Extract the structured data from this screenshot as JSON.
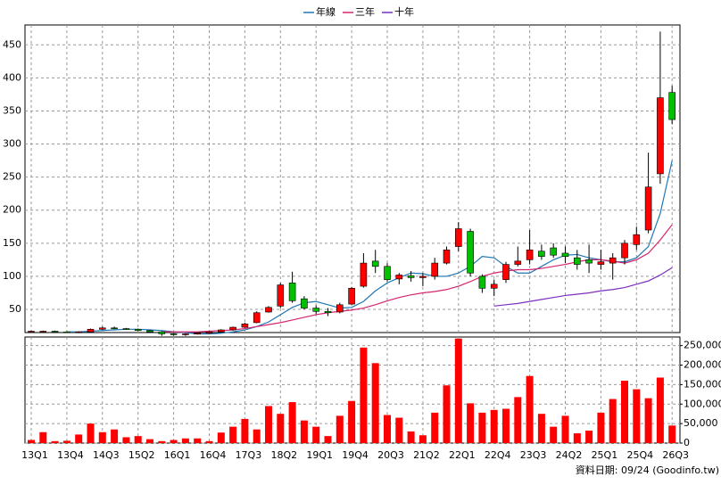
{
  "chart_data": [
    {
      "type": "candlestick",
      "categories": [
        "13Q1",
        null,
        null,
        "13Q4",
        null,
        null,
        "14Q3",
        null,
        null,
        "15Q2",
        null,
        null,
        "16Q1",
        null,
        null,
        "16Q4",
        null,
        null,
        "17Q3",
        null,
        null,
        "18Q2",
        null,
        null,
        "19Q1",
        null,
        null,
        "19Q4",
        null,
        null,
        "20Q3",
        null,
        null,
        "21Q2",
        null,
        null,
        "22Q1",
        null,
        null,
        "22Q4",
        null,
        null,
        "23Q3",
        null,
        null,
        "24Q2",
        null,
        null,
        "25Q1",
        null,
        null,
        "25Q4",
        null,
        null,
        "26Q3"
      ],
      "open": [
        17,
        17,
        17,
        16,
        15,
        16,
        20,
        22,
        21,
        20,
        18,
        16,
        13,
        12,
        13,
        14,
        16,
        19,
        23,
        30,
        46,
        55,
        90,
        66,
        52,
        47,
        46,
        58,
        85,
        123,
        115,
        96,
        101,
        98,
        100,
        120,
        145,
        168,
        100,
        82,
        95,
        118,
        125,
        138,
        143,
        135,
        128,
        125,
        118,
        120,
        128,
        148,
        170,
        255,
        378
      ],
      "high": [
        18,
        18,
        18,
        17,
        17,
        21,
        24,
        24,
        22,
        21,
        19,
        17,
        14,
        14,
        15,
        17,
        20,
        24,
        30,
        47,
        55,
        90,
        107,
        70,
        56,
        52,
        60,
        84,
        135,
        140,
        120,
        105,
        108,
        105,
        128,
        145,
        182,
        172,
        103,
        95,
        122,
        145,
        170,
        148,
        150,
        145,
        140,
        148,
        140,
        135,
        155,
        175,
        287,
        470,
        388
      ],
      "low": [
        16,
        16,
        16,
        15,
        14,
        15,
        19,
        20,
        19,
        17,
        15,
        10,
        10,
        10,
        12,
        13,
        15,
        18,
        22,
        29,
        45,
        52,
        60,
        50,
        43,
        40,
        44,
        57,
        83,
        105,
        92,
        88,
        92,
        85,
        95,
        118,
        138,
        100,
        75,
        70,
        90,
        115,
        118,
        125,
        128,
        120,
        110,
        105,
        110,
        95,
        118,
        140,
        165,
        240,
        330
      ],
      "close": [
        17,
        17,
        16,
        15,
        16,
        20,
        22,
        21,
        20,
        18,
        16,
        13,
        12,
        13,
        14,
        16,
        19,
        23,
        28,
        45,
        53,
        87,
        63,
        52,
        47,
        45,
        57,
        82,
        120,
        115,
        95,
        102,
        98,
        100,
        120,
        140,
        172,
        105,
        82,
        88,
        118,
        123,
        140,
        130,
        132,
        130,
        118,
        120,
        122,
        128,
        150,
        163,
        235,
        370,
        337
      ],
      "up_color": "#ff0000",
      "down_color": "#00c000",
      "series": [
        {
          "name": "年線",
          "color": "#1f77b4",
          "values": [
            null,
            null,
            null,
            16,
            16,
            17,
            18,
            19,
            20,
            20,
            19,
            18,
            16,
            15,
            13,
            13,
            14,
            16,
            19,
            24,
            31,
            42,
            53,
            60,
            62,
            57,
            52,
            53,
            62,
            78,
            90,
            98,
            105,
            104,
            100,
            100,
            105,
            115,
            130,
            128,
            115,
            105,
            105,
            115,
            125,
            132,
            133,
            128,
            125,
            122,
            122,
            128,
            145,
            195,
            275
          ]
        },
        {
          "name": "三年",
          "color": "#d6246e",
          "values": [
            null,
            null,
            null,
            null,
            null,
            null,
            null,
            null,
            null,
            null,
            null,
            16,
            16,
            16,
            16,
            17,
            18,
            19,
            21,
            24,
            27,
            30,
            34,
            38,
            42,
            45,
            47,
            49,
            52,
            57,
            63,
            68,
            72,
            75,
            77,
            80,
            85,
            92,
            100,
            105,
            108,
            110,
            110,
            112,
            115,
            118,
            122,
            125,
            125,
            123,
            120,
            125,
            135,
            155,
            178
          ]
        },
        {
          "name": "十年",
          "color": "#7b2fbf",
          "values": [
            null,
            null,
            null,
            null,
            null,
            null,
            null,
            null,
            null,
            null,
            null,
            null,
            null,
            null,
            null,
            null,
            null,
            null,
            null,
            null,
            null,
            null,
            null,
            null,
            null,
            null,
            null,
            null,
            null,
            null,
            null,
            null,
            null,
            null,
            null,
            null,
            null,
            null,
            null,
            55,
            57,
            59,
            62,
            65,
            68,
            71,
            73,
            75,
            78,
            80,
            83,
            88,
            93,
            102,
            113
          ]
        }
      ],
      "ylim": [
        15,
        480
      ],
      "yticks": [
        50,
        100,
        150,
        200,
        250,
        300,
        350,
        400,
        450
      ],
      "grid": true,
      "legend": "top"
    },
    {
      "type": "bar",
      "color": "#ff0000",
      "values": [
        8000,
        28000,
        5000,
        6000,
        22000,
        50000,
        28000,
        35000,
        15000,
        18000,
        10000,
        5000,
        8000,
        12000,
        12000,
        5000,
        27000,
        42000,
        62000,
        35000,
        95000,
        75000,
        105000,
        58000,
        42000,
        18000,
        70000,
        108000,
        245000,
        205000,
        72000,
        65000,
        30000,
        20000,
        78000,
        148000,
        268000,
        102000,
        78000,
        85000,
        88000,
        118000,
        172000,
        75000,
        42000,
        70000,
        25000,
        32000,
        78000,
        113000,
        160000,
        138000,
        115000,
        168000,
        45000
      ],
      "ylim": [
        0,
        272000
      ],
      "yticks": [
        0,
        {
          "value": 50000,
          "label": "50,000"
        },
        {
          "value": 100000,
          "label": "100,000"
        },
        {
          "value": 150000,
          "label": "150,000"
        },
        {
          "value": 200000,
          "label": "200,000"
        },
        {
          "value": 250000,
          "label": "250,000"
        }
      ],
      "grid": true
    }
  ],
  "footer": "資料日期: 09/24 (Goodinfo.tw)"
}
